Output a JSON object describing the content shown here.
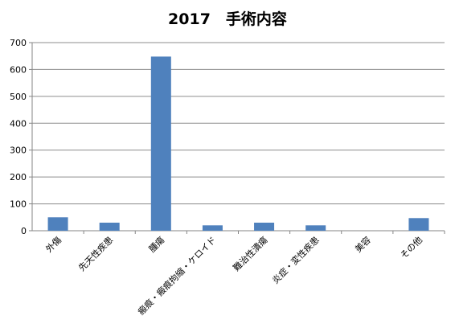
{
  "chart_data": {
    "type": "bar",
    "title": "2017　手術内容",
    "xlabel": "",
    "ylabel": "",
    "categories": [
      "外傷",
      "先天性疾患",
      "腫瘍",
      "瘢痕・瘢痕拘縮・ケロイド",
      "難治性潰瘍",
      "炎症・変性疾患",
      "美容",
      "その他"
    ],
    "values": [
      50,
      30,
      648,
      20,
      30,
      20,
      0,
      47
    ],
    "ylim": [
      0,
      700
    ],
    "yticks": [
      0,
      100,
      200,
      300,
      400,
      500,
      600,
      700
    ],
    "grid": true,
    "legend": "none",
    "colors": {
      "bar": "#4f81bd",
      "grid": "#8c8c8c",
      "axis": "#868686"
    }
  }
}
